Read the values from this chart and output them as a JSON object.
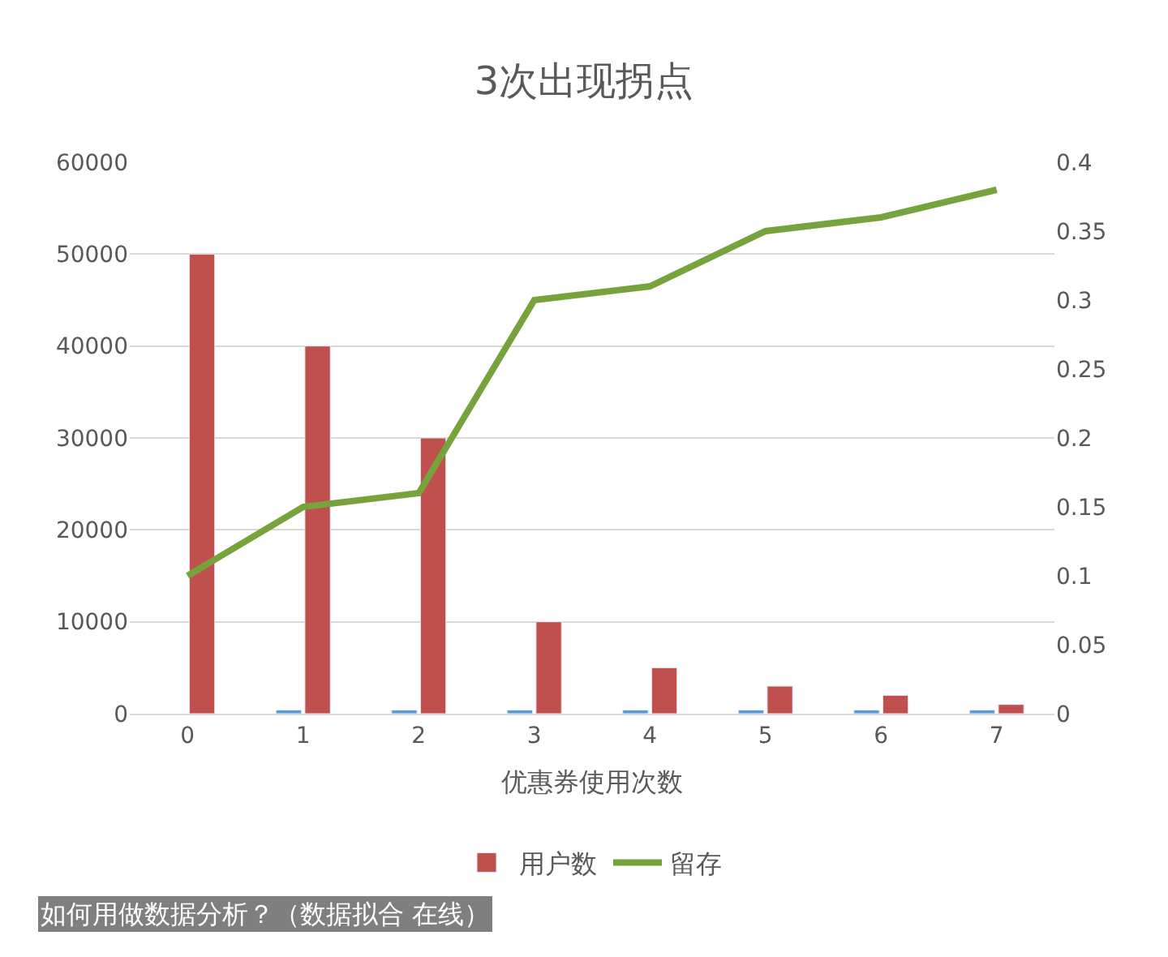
{
  "chart_data": {
    "type": "bar",
    "title": "3次出现拐点",
    "xlabel": "优惠券使用次数",
    "categories": [
      "0",
      "1",
      "2",
      "3",
      "4",
      "5",
      "6",
      "7"
    ],
    "series": [
      {
        "color": "#5b9bd5",
        "values": [
          null,
          400,
          400,
          400,
          400,
          400,
          400,
          400
        ]
      },
      {
        "name": "用户数",
        "color": "#c0504d",
        "values": [
          50000,
          40000,
          30000,
          10000,
          5000,
          3000,
          2000,
          1000
        ]
      },
      {
        "name": "留存",
        "type": "line",
        "axis": "y2",
        "color": "#77a33c",
        "values": [
          0.1,
          0.15,
          0.16,
          0.3,
          0.31,
          0.35,
          0.36,
          0.38
        ]
      }
    ],
    "ylim": [
      0,
      60000
    ],
    "yticks": [
      0,
      10000,
      20000,
      30000,
      40000,
      50000,
      60000
    ],
    "y2lim": [
      0,
      0.4
    ],
    "y2ticks": [
      0,
      0.05,
      0.1,
      0.15,
      0.2,
      0.25,
      0.3,
      0.35,
      0.4
    ],
    "grid": "y",
    "legend": "bottom",
    "annotations": [
      "如何用做数据分析？（数据拟合 在线）"
    ]
  }
}
